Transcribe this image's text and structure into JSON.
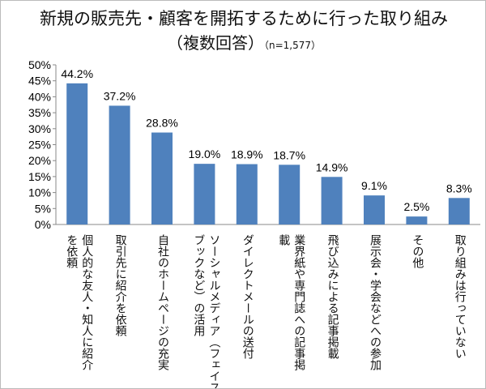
{
  "chart_data": {
    "type": "bar",
    "title": "新規の販売先・顧客を開拓するために行った取り組み",
    "subtitle": "（複数回答）",
    "note": "（n=1,577）",
    "categories": [
      "個人的な友人・知人に紹介\nを依頼",
      "取引先に紹介を依頼",
      "自社のホームページの充実",
      "ソーシャルメディア（フェイス\nブックなど）の活用",
      "ダイレクトメールの送付",
      "業界紙や専門誌への記事掲\n載",
      "飛び込みによる記事掲載",
      "展示会・学会などへの参加",
      "その他",
      "取り組みは行っていない"
    ],
    "values": [
      44.2,
      37.2,
      28.8,
      19.0,
      18.9,
      18.7,
      14.9,
      9.1,
      2.5,
      8.3
    ],
    "data_labels": [
      "44.2%",
      "37.2%",
      "28.8%",
      "19.0%",
      "18.9%",
      "18.7%",
      "14.9%",
      "9.1%",
      "2.5%",
      "8.3%"
    ],
    "yticks": [
      "0%",
      "5%",
      "10%",
      "15%",
      "20%",
      "25%",
      "30%",
      "35%",
      "40%",
      "45%",
      "50%"
    ],
    "ylim": [
      0,
      50
    ],
    "grid": false,
    "bar_color": "#4f81bd"
  }
}
